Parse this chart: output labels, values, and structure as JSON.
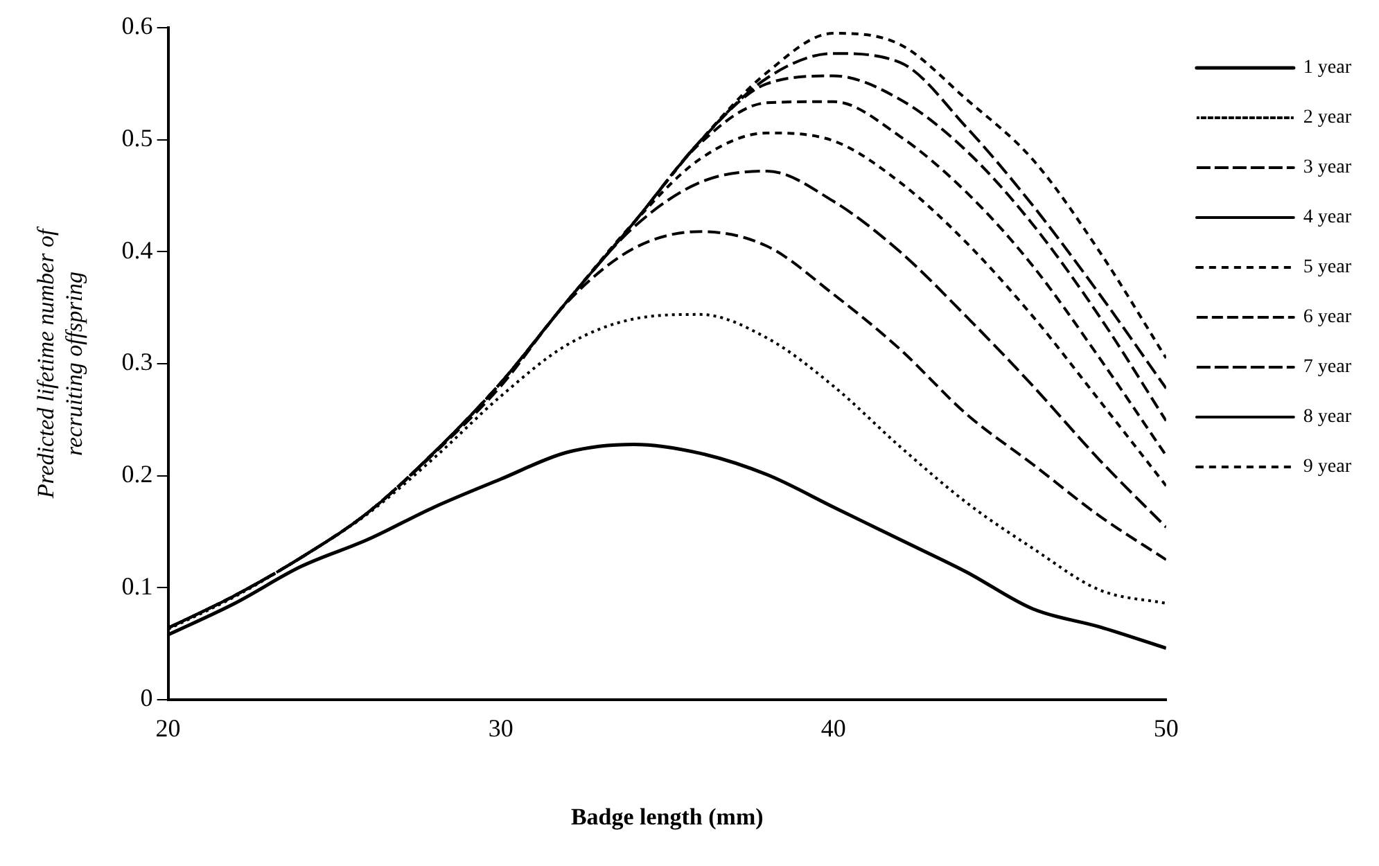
{
  "chart_data": {
    "type": "line",
    "xlabel": "Badge length (mm)",
    "ylabel": "Predicted lifetime number of\nrecruiting offspring",
    "x": [
      20,
      22,
      24,
      26,
      28,
      30,
      32,
      34,
      36,
      38,
      40,
      42,
      44,
      46,
      48,
      50
    ],
    "xlim": [
      20,
      50
    ],
    "xticks": [
      20,
      30,
      40,
      50
    ],
    "ylim": [
      0,
      0.6
    ],
    "yticks": [
      0,
      0.1,
      0.2,
      0.3,
      0.4,
      0.5,
      0.6
    ],
    "grid": false,
    "legend": "right",
    "marker": "none",
    "series": [
      {
        "name": "1 year",
        "color": "#000000",
        "line_style": "solid",
        "values": [
          0.058,
          0.086,
          0.119,
          0.143,
          0.172,
          0.197,
          0.221,
          0.228,
          0.22,
          0.201,
          0.172,
          0.143,
          0.114,
          0.081,
          0.065,
          0.046
        ]
      },
      {
        "name": "2 year",
        "color": "#000000",
        "line_style": "dotted",
        "values": [
          0.063,
          0.092,
          0.127,
          0.166,
          0.216,
          0.271,
          0.317,
          0.34,
          0.344,
          0.323,
          0.28,
          0.226,
          0.176,
          0.135,
          0.098,
          0.086
        ]
      },
      {
        "name": "3 year",
        "color": "#000000",
        "line_style": "dashed",
        "values": [
          0.064,
          0.093,
          0.127,
          0.167,
          0.22,
          0.28,
          0.355,
          0.403,
          0.418,
          0.405,
          0.362,
          0.313,
          0.255,
          0.21,
          0.164,
          0.125
        ]
      },
      {
        "name": "4 year",
        "color": "#000000",
        "line_style": "dashed",
        "values": [
          0.064,
          0.093,
          0.127,
          0.167,
          0.221,
          0.283,
          0.356,
          0.422,
          0.462,
          0.472,
          0.445,
          0.4,
          0.342,
          0.28,
          0.214,
          0.154
        ]
      },
      {
        "name": "5 year",
        "color": "#000000",
        "line_style": "dashed",
        "values": [
          0.064,
          0.093,
          0.127,
          0.167,
          0.221,
          0.283,
          0.356,
          0.426,
          0.483,
          0.506,
          0.499,
          0.462,
          0.408,
          0.342,
          0.267,
          0.191
        ]
      },
      {
        "name": "6 year",
        "color": "#000000",
        "line_style": "dashed",
        "values": [
          0.064,
          0.093,
          0.127,
          0.167,
          0.221,
          0.283,
          0.356,
          0.426,
          0.497,
          0.533,
          0.534,
          0.503,
          0.453,
          0.387,
          0.305,
          0.218
        ]
      },
      {
        "name": "7 year",
        "color": "#000000",
        "line_style": "dashed",
        "values": [
          0.064,
          0.093,
          0.127,
          0.167,
          0.221,
          0.283,
          0.356,
          0.426,
          0.499,
          0.55,
          0.557,
          0.536,
          0.49,
          0.424,
          0.342,
          0.249
        ]
      },
      {
        "name": "8 year",
        "color": "#000000",
        "line_style": "dashed",
        "values": [
          0.064,
          0.093,
          0.127,
          0.167,
          0.221,
          0.283,
          0.356,
          0.426,
          0.499,
          0.555,
          0.577,
          0.569,
          0.511,
          0.441,
          0.362,
          0.278
        ]
      },
      {
        "name": "9 year",
        "color": "#000000",
        "line_style": "dashed",
        "values": [
          0.064,
          0.093,
          0.127,
          0.167,
          0.221,
          0.283,
          0.356,
          0.426,
          0.499,
          0.56,
          0.595,
          0.585,
          0.536,
          0.482,
          0.4,
          0.305
        ]
      }
    ]
  }
}
